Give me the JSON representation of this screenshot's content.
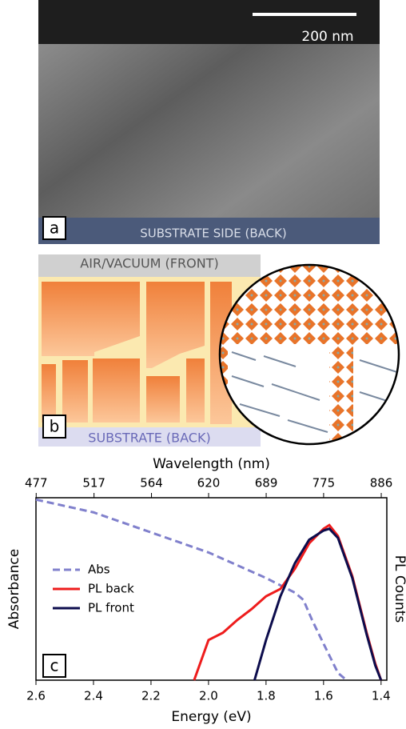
{
  "panel_a": {
    "scale_bar": "200 nm",
    "label": "a",
    "caption": "SUBSTRATE SIDE (BACK)"
  },
  "panel_b": {
    "top": "AIR/VACUUM (FRONT)",
    "label": "b",
    "bottom": "SUBSTRATE (BACK)"
  },
  "chart_data": {
    "type": "line",
    "label": "c",
    "x_label": "Energy (eV)",
    "x2_label": "Wavelength (nm)",
    "y_label": "Absorbance",
    "y2_label": "PL Counts",
    "xlim": [
      2.6,
      1.38
    ],
    "xticks": [
      2.6,
      2.4,
      2.2,
      {
        "value": 2,
        "label": "2.0"
      },
      1.8,
      1.6,
      1.4
    ],
    "x2ticks": [
      477,
      517,
      564,
      620,
      689,
      775,
      886
    ],
    "ylim": [
      0,
      1
    ],
    "series": [
      {
        "name": "Abs",
        "color": "#8080cc",
        "dashed": true,
        "x": [
          2.6,
          2.4,
          2.2,
          2.0,
          1.8,
          1.7,
          1.67,
          1.64,
          1.6,
          1.55,
          1.52
        ],
        "values": [
          0.99,
          0.92,
          0.81,
          0.7,
          0.56,
          0.48,
          0.44,
          0.33,
          0.2,
          0.04,
          0
        ]
      },
      {
        "name": "PL back",
        "color": "#ee1c1c",
        "dashed": false,
        "x": [
          2.05,
          2.0,
          1.95,
          1.9,
          1.85,
          1.8,
          1.75,
          1.7,
          1.65,
          1.6,
          1.58,
          1.55,
          1.5,
          1.45,
          1.42,
          1.4
        ],
        "values": [
          0,
          0.22,
          0.26,
          0.33,
          0.39,
          0.46,
          0.5,
          0.61,
          0.75,
          0.83,
          0.85,
          0.79,
          0.57,
          0.26,
          0.09,
          0
        ]
      },
      {
        "name": "PL front",
        "color": "#0d0d4d",
        "dashed": false,
        "x": [
          1.84,
          1.8,
          1.75,
          1.7,
          1.65,
          1.6,
          1.58,
          1.55,
          1.5,
          1.45,
          1.42,
          1.4
        ],
        "values": [
          0,
          0.22,
          0.46,
          0.64,
          0.77,
          0.82,
          0.83,
          0.78,
          0.56,
          0.25,
          0.08,
          0
        ]
      }
    ]
  }
}
